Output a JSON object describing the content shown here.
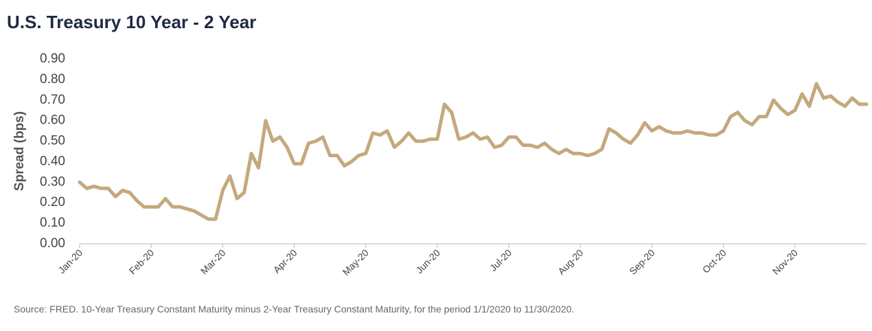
{
  "chart_data": {
    "type": "line",
    "title": "U.S. Treasury 10 Year - 2 Year",
    "y_label": "Spread (bps)",
    "source": "Source: FRED. 10-Year Treasury Constant Maturity minus 2-Year Treasury Constant Maturity, for the period 1/1/2020 to 11/30/2020.",
    "color": "#c4a97d",
    "categories": [
      "Jan-20",
      null,
      null,
      null,
      null,
      null,
      null,
      null,
      null,
      null,
      "Feb-20",
      null,
      null,
      null,
      null,
      null,
      null,
      null,
      null,
      null,
      "Mar-20",
      null,
      null,
      null,
      null,
      null,
      null,
      null,
      null,
      null,
      "Apr-20",
      null,
      null,
      null,
      null,
      null,
      null,
      null,
      null,
      null,
      "May-20",
      null,
      null,
      null,
      null,
      null,
      null,
      null,
      null,
      null,
      "Jun-20",
      null,
      null,
      null,
      null,
      null,
      null,
      null,
      null,
      null,
      "Jul-20",
      null,
      null,
      null,
      null,
      null,
      null,
      null,
      null,
      null,
      "Aug-20",
      null,
      null,
      null,
      null,
      null,
      null,
      null,
      null,
      null,
      "Sep-20",
      null,
      null,
      null,
      null,
      null,
      null,
      null,
      null,
      null,
      "Oct-20",
      null,
      null,
      null,
      null,
      null,
      null,
      null,
      null,
      null,
      "Nov-20",
      null,
      null,
      null,
      null,
      null,
      null,
      null,
      null,
      null,
      null
    ],
    "values": [
      0.3,
      0.27,
      0.28,
      0.27,
      0.27,
      0.23,
      0.26,
      0.25,
      0.21,
      0.18,
      0.18,
      0.18,
      0.22,
      0.18,
      0.18,
      0.17,
      0.16,
      0.14,
      0.12,
      0.12,
      0.26,
      0.33,
      0.22,
      0.25,
      0.44,
      0.37,
      0.6,
      0.5,
      0.52,
      0.47,
      0.39,
      0.39,
      0.49,
      0.5,
      0.52,
      0.43,
      0.43,
      0.38,
      0.4,
      0.43,
      0.44,
      0.54,
      0.53,
      0.55,
      0.47,
      0.5,
      0.54,
      0.5,
      0.5,
      0.51,
      0.51,
      0.68,
      0.64,
      0.51,
      0.52,
      0.54,
      0.51,
      0.52,
      0.47,
      0.48,
      0.52,
      0.52,
      0.48,
      0.48,
      0.47,
      0.49,
      0.46,
      0.44,
      0.46,
      0.44,
      0.44,
      0.43,
      0.44,
      0.46,
      0.56,
      0.54,
      0.51,
      0.49,
      0.53,
      0.59,
      0.55,
      0.57,
      0.55,
      0.54,
      0.54,
      0.55,
      0.54,
      0.54,
      0.53,
      0.53,
      0.55,
      0.62,
      0.64,
      0.6,
      0.58,
      0.62,
      0.62,
      0.7,
      0.66,
      0.63,
      0.65,
      0.73,
      0.67,
      0.78,
      0.71,
      0.72,
      0.69,
      0.67,
      0.71,
      0.68,
      0.68
    ],
    "ylim": [
      0,
      0.9
    ],
    "yticks": [
      {
        "value": 0,
        "label": "0.00"
      },
      {
        "value": 0.1,
        "label": "0.10"
      },
      {
        "value": 0.2,
        "label": "0.20"
      },
      {
        "value": 0.3,
        "label": "0.30"
      },
      {
        "value": 0.4,
        "label": "0.40"
      },
      {
        "value": 0.5,
        "label": "0.50"
      },
      {
        "value": 0.6,
        "label": "0.60"
      },
      {
        "value": 0.7,
        "label": "0.70"
      },
      {
        "value": 0.8,
        "label": "0.80"
      },
      {
        "value": 0.9,
        "label": "0.90"
      }
    ],
    "grid": false
  }
}
